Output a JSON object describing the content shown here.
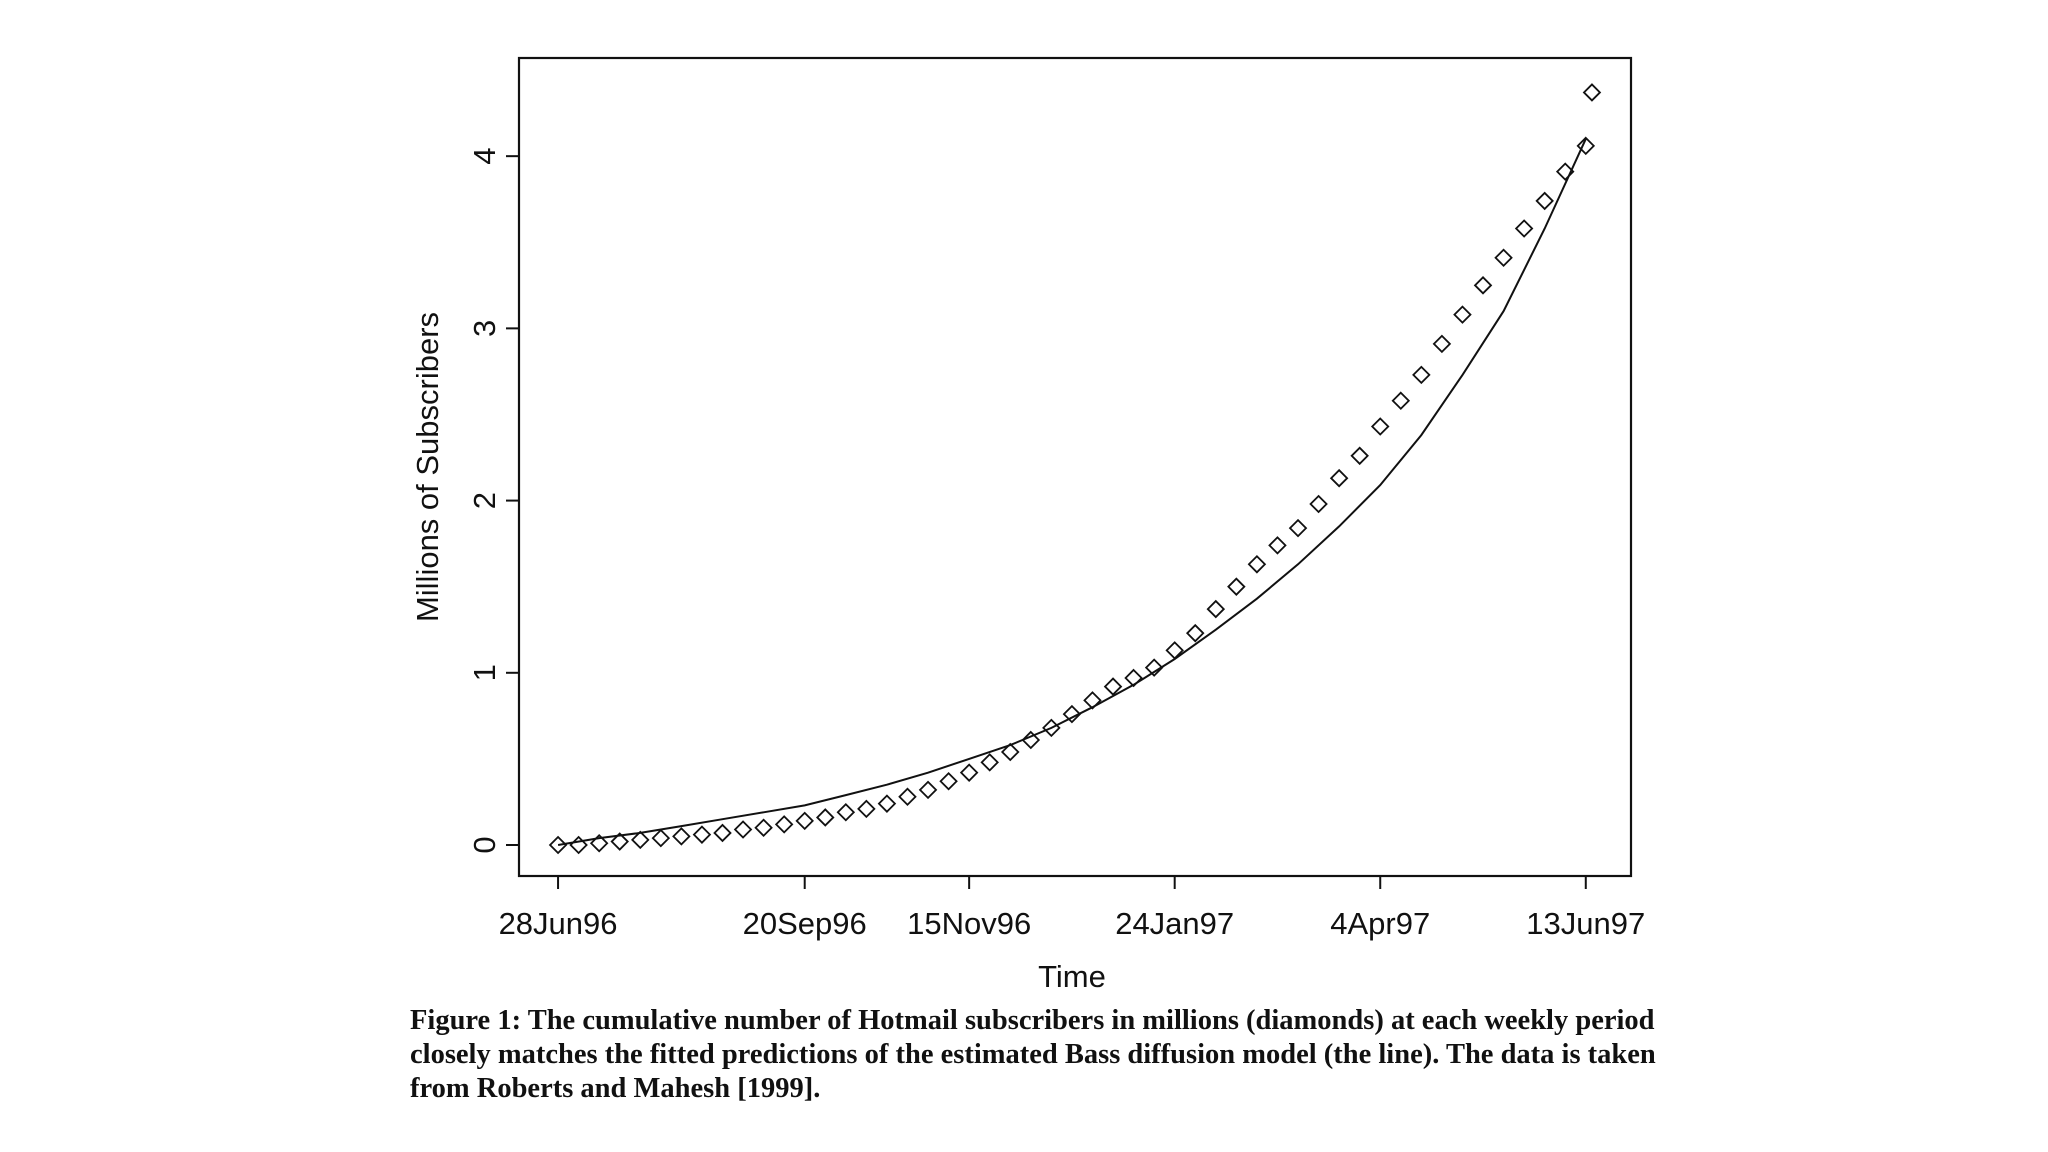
{
  "chart_data": {
    "type": "scatter",
    "title": "",
    "xlabel": "Time",
    "ylabel": "Millions of Subscribers",
    "x_tick_labels": [
      "28Jun96",
      "20Sep96",
      "15Nov96",
      "24Jan97",
      "4Apr97",
      "13Jun97"
    ],
    "x_tick_weeks": [
      0,
      12,
      20,
      30,
      40,
      50
    ],
    "x_unit": "weeks since 28Jun96",
    "y_ticks": [
      0,
      1,
      2,
      3,
      4
    ],
    "ylim": [
      -0.18,
      4.57
    ],
    "xlim": [
      -1.9,
      52.2
    ],
    "grid": false,
    "legend": "none",
    "series": [
      {
        "marker": "diamond",
        "kind": "points",
        "x": [
          0,
          1,
          2,
          3,
          4,
          5,
          6,
          7,
          8,
          9,
          10,
          11,
          12,
          13,
          14,
          15,
          16,
          17,
          18,
          19,
          20,
          21,
          22,
          23,
          24,
          25,
          26,
          27,
          28,
          29,
          30,
          31,
          32,
          33,
          34,
          35,
          36,
          37,
          38,
          39,
          40,
          41,
          42,
          43,
          44,
          45,
          46,
          47,
          48,
          49,
          50
        ],
        "y": [
          0.0,
          0.0,
          0.01,
          0.02,
          0.03,
          0.04,
          0.05,
          0.06,
          0.07,
          0.09,
          0.1,
          0.12,
          0.14,
          0.16,
          0.19,
          0.21,
          0.24,
          0.28,
          0.32,
          0.37,
          0.42,
          0.48,
          0.54,
          0.61,
          0.68,
          0.76,
          0.84,
          0.92,
          0.97,
          1.03,
          1.13,
          1.23,
          1.37,
          1.5,
          1.63,
          1.74,
          1.84,
          1.98,
          2.13,
          2.26,
          2.43,
          2.58,
          2.73,
          2.91,
          3.08,
          3.25,
          3.41,
          3.58,
          3.74,
          3.91,
          4.06
        ]
      },
      {
        "kind": "fitted-line",
        "model": "Bass diffusion",
        "x": [
          0,
          2,
          4,
          6,
          8,
          10,
          12,
          14,
          16,
          18,
          20,
          22,
          24,
          26,
          28,
          30,
          32,
          34,
          36,
          38,
          40,
          42,
          44,
          46,
          48,
          50
        ],
        "y": [
          0.0,
          0.04,
          0.07,
          0.11,
          0.15,
          0.19,
          0.23,
          0.29,
          0.35,
          0.42,
          0.5,
          0.58,
          0.68,
          0.8,
          0.93,
          1.08,
          1.25,
          1.43,
          1.63,
          1.85,
          2.09,
          2.38,
          2.73,
          3.1,
          3.58,
          4.1
        ]
      }
    ],
    "extra_point": {
      "x": 50.3,
      "y": 4.37
    },
    "colors": {
      "ink": "#111111",
      "background": "#ffffff"
    }
  },
  "caption": "Figure 1: The cumulative number of Hotmail subscribers in millions (diamonds) at each weekly period closely matches the fitted predictions of the estimated Bass diffusion model (the line). The data is taken from Roberts and Mahesh [1999]."
}
